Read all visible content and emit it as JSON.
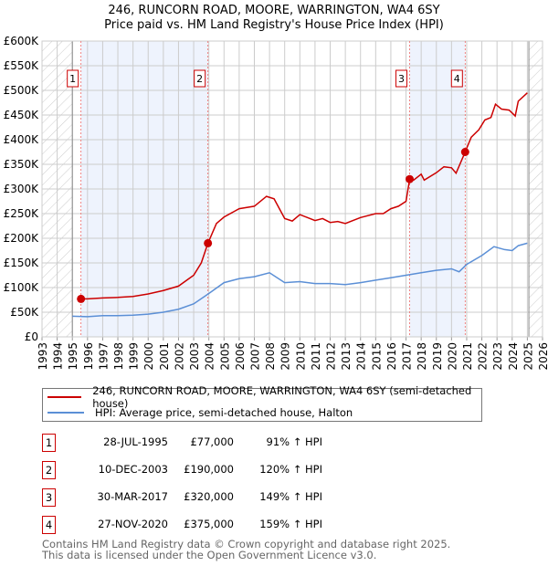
{
  "title": "246, RUNCORN ROAD, MOORE, WARRINGTON, WA4 6SY",
  "subtitle": "Price paid vs. HM Land Registry's House Price Index (HPI)",
  "colors": {
    "property": "#cc0000",
    "hpi": "#5b8fd6",
    "shade": "#eef3fd"
  },
  "legend": [
    {
      "label": "246, RUNCORN ROAD, MOORE, WARRINGTON, WA4 6SY (semi-detached house)"
    },
    {
      "label": "HPI: Average price, semi-detached house, Halton"
    }
  ],
  "sales": [
    {
      "num": "1",
      "date": "28-JUL-1995",
      "price": "£77,000",
      "hpi": "91% ↑ HPI"
    },
    {
      "num": "2",
      "date": "10-DEC-2003",
      "price": "£190,000",
      "hpi": "120% ↑ HPI"
    },
    {
      "num": "3",
      "date": "30-MAR-2017",
      "price": "£320,000",
      "hpi": "149% ↑ HPI"
    },
    {
      "num": "4",
      "date": "27-NOV-2020",
      "price": "£375,000",
      "hpi": "159% ↑ HPI"
    }
  ],
  "footer": [
    "Contains HM Land Registry data © Crown copyright and database right 2025.",
    "This data is licensed under the Open Government Licence v3.0."
  ],
  "chart_data": {
    "type": "line",
    "xlim": [
      1993,
      2026
    ],
    "ylim": [
      0,
      600000
    ],
    "yticks": [
      0,
      50000,
      100000,
      150000,
      200000,
      250000,
      300000,
      350000,
      400000,
      450000,
      500000,
      550000,
      600000
    ],
    "ytick_labels": [
      "£0",
      "£50K",
      "£100K",
      "£150K",
      "£200K",
      "£250K",
      "£300K",
      "£350K",
      "£400K",
      "£450K",
      "£500K",
      "£550K",
      "£600K"
    ],
    "xticks": [
      1993,
      1994,
      1995,
      1996,
      1997,
      1998,
      1999,
      2000,
      2001,
      2002,
      2003,
      2004,
      2005,
      2006,
      2007,
      2008,
      2009,
      2010,
      2011,
      2012,
      2013,
      2014,
      2015,
      2016,
      2017,
      2018,
      2019,
      2020,
      2021,
      2022,
      2023,
      2024,
      2025,
      2026
    ],
    "grid": true,
    "hatched_before": 1995,
    "hatched_after": 2025.1,
    "shaded_ranges": [
      [
        1995.57,
        2003.94
      ],
      [
        2017.24,
        2020.9
      ]
    ],
    "sale_points": [
      {
        "label": "1",
        "x": 1995.57,
        "y": 77000
      },
      {
        "label": "2",
        "x": 2003.94,
        "y": 190000
      },
      {
        "label": "3",
        "x": 2017.24,
        "y": 320000
      },
      {
        "label": "4",
        "x": 2020.9,
        "y": 375000
      }
    ],
    "series": [
      {
        "name": "246, RUNCORN ROAD, MOORE, WARRINGTON, WA4 6SY (semi-detached house)",
        "color": "#cc0000",
        "x": [
          1995.57,
          1996,
          1997,
          1998,
          1999,
          2000,
          2001,
          2002,
          2003,
          2003.5,
          2003.94,
          2004.5,
          2005,
          2006,
          2007,
          2007.8,
          2008.3,
          2009,
          2009.5,
          2010,
          2010.5,
          2011,
          2011.5,
          2012,
          2012.5,
          2013,
          2014,
          2015,
          2015.5,
          2016,
          2016.5,
          2017,
          2017.24,
          2017.5,
          2018,
          2018.2,
          2019,
          2019.5,
          2020,
          2020.3,
          2020.9,
          2021.3,
          2021.8,
          2022.2,
          2022.6,
          2022.9,
          2023.3,
          2023.8,
          2024.2,
          2024.4,
          2025
        ],
        "y": [
          77000,
          77000,
          79000,
          80000,
          82000,
          87000,
          94000,
          103000,
          125000,
          150000,
          190000,
          230000,
          243000,
          260000,
          265000,
          285000,
          280000,
          240000,
          235000,
          248000,
          242000,
          236000,
          240000,
          232000,
          234000,
          230000,
          242000,
          250000,
          250000,
          260000,
          265000,
          275000,
          320000,
          318000,
          330000,
          318000,
          333000,
          345000,
          343000,
          332000,
          375000,
          405000,
          420000,
          440000,
          445000,
          472000,
          462000,
          460000,
          448000,
          478000,
          495000
        ]
      },
      {
        "name": "HPI: Average price, semi-detached house, Halton",
        "color": "#5b8fd6",
        "x": [
          1995,
          1996,
          1997,
          1998,
          1999,
          2000,
          2001,
          2002,
          2003,
          2004,
          2005,
          2006,
          2007,
          2008,
          2009,
          2010,
          2011,
          2012,
          2013,
          2014,
          2015,
          2016,
          2017,
          2018,
          2019,
          2020,
          2020.5,
          2021,
          2022,
          2022.8,
          2023.5,
          2024,
          2024.4,
          2025
        ],
        "y": [
          42000,
          41000,
          43000,
          43000,
          44000,
          46000,
          50000,
          56000,
          67000,
          88000,
          110000,
          118000,
          122000,
          130000,
          110000,
          112000,
          108000,
          108000,
          106000,
          110000,
          115000,
          120000,
          125000,
          130000,
          135000,
          138000,
          132000,
          147000,
          165000,
          183000,
          177000,
          175000,
          185000,
          190000
        ]
      }
    ]
  }
}
